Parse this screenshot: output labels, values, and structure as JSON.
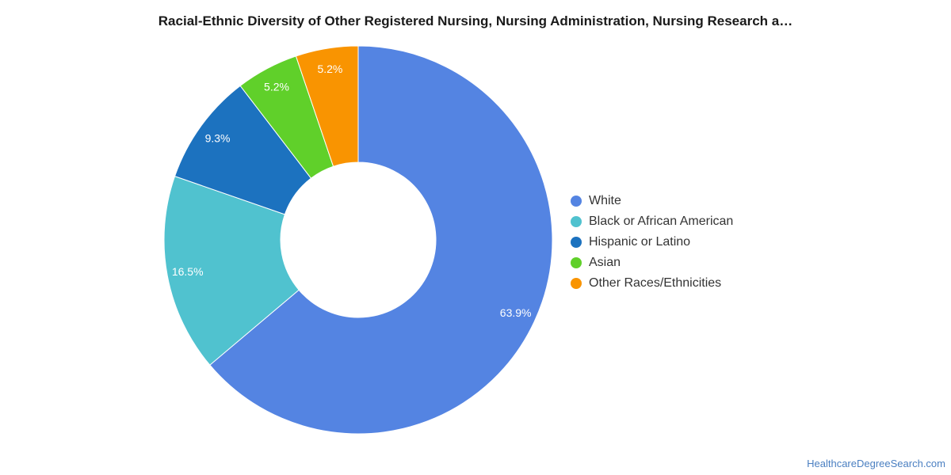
{
  "chart_data": {
    "type": "pie",
    "title": "Racial-Ethnic Diversity of Other Registered Nursing, Nursing Administration, Nursing Research a…",
    "categories": [
      "White",
      "Black or African American",
      "Hispanic or Latino",
      "Asian",
      "Other Races/Ethnicities"
    ],
    "values": [
      63.9,
      16.5,
      9.3,
      5.2,
      5.2
    ],
    "labels": [
      "63.9%",
      "16.5%",
      "9.3%",
      "5.2%",
      "5.2%"
    ],
    "colors": [
      "#5484e2",
      "#50c2cf",
      "#1c72bf",
      "#60d02a",
      "#f99401"
    ],
    "donut": true,
    "legend_position": "right"
  },
  "footer": {
    "source": "HealthcareDegreeSearch.com"
  }
}
